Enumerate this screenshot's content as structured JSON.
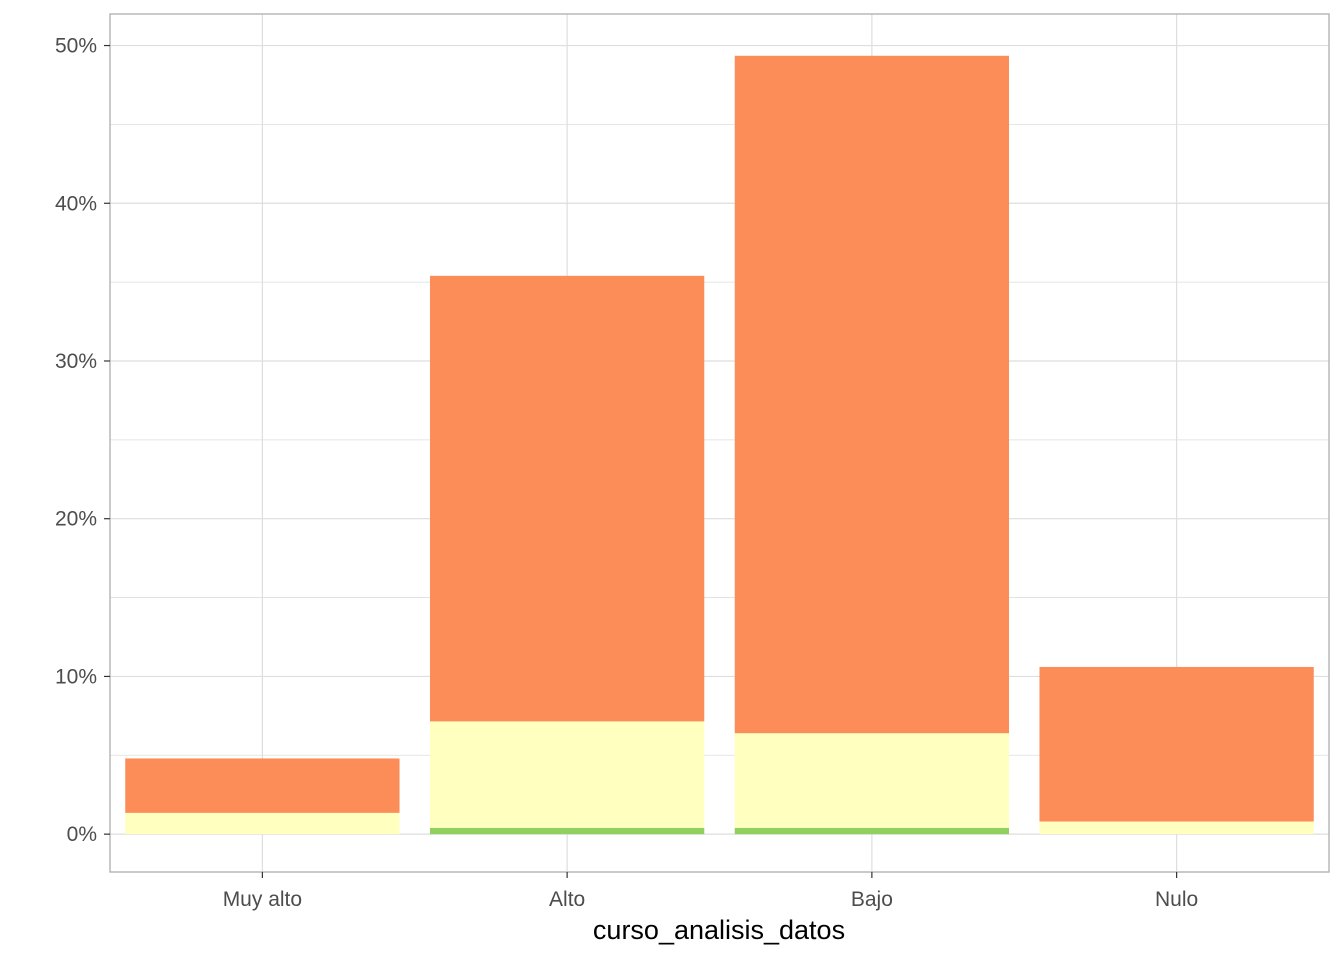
{
  "chart_data": {
    "type": "bar",
    "stacked": true,
    "categories": [
      "Muy alto",
      "Alto",
      "Bajo",
      "Nulo"
    ],
    "series": [
      {
        "color": "#91cf60",
        "values": [
          0.0,
          0.4,
          0.4,
          0.0
        ]
      },
      {
        "color": "#ffffbf",
        "values": [
          1.35,
          6.75,
          6.0,
          0.8
        ]
      },
      {
        "color": "#fc8d59",
        "values": [
          3.45,
          28.25,
          42.95,
          9.8
        ]
      }
    ],
    "xlabel": "curso_analisis_datos",
    "ylabel": "",
    "ylim": [
      -2.4,
      52
    ],
    "yticks": [
      0,
      10,
      20,
      30,
      40,
      50
    ],
    "ytick_labels": [
      "0%",
      "10%",
      "20%",
      "30%",
      "40%",
      "50%"
    ],
    "grid": true,
    "legend": "none",
    "panel_border_color": "#b3b3b3",
    "grid_color": "#dedede"
  }
}
